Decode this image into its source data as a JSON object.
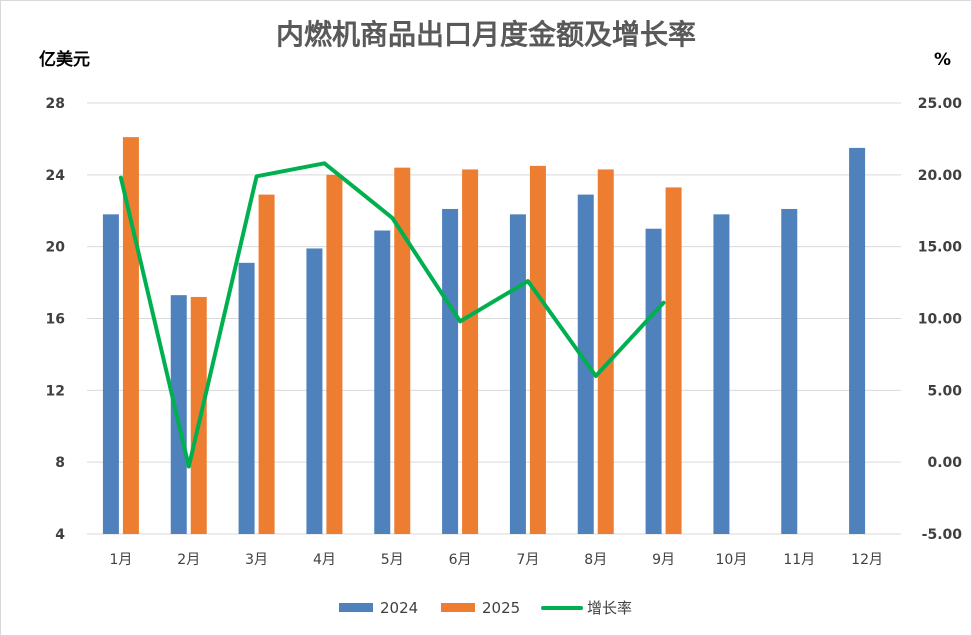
{
  "chart_data": {
    "type": "bar",
    "title": "内燃机商品出口月度金额及增长率",
    "ylabel_left": "亿美元",
    "ylabel_right": "%",
    "categories": [
      "1月",
      "2月",
      "3月",
      "4月",
      "5月",
      "6月",
      "7月",
      "8月",
      "9月",
      "10月",
      "11月",
      "12月"
    ],
    "series": [
      {
        "name": "2024",
        "type": "bar",
        "axis": "left",
        "color": "#4f81bd",
        "values": [
          21.8,
          17.3,
          19.1,
          19.9,
          20.9,
          22.1,
          21.8,
          22.9,
          21.0,
          21.8,
          22.1,
          25.5
        ]
      },
      {
        "name": "2025",
        "type": "bar",
        "axis": "left",
        "color": "#ed7d31",
        "values": [
          26.1,
          17.2,
          22.9,
          24.0,
          24.4,
          24.3,
          24.5,
          24.3,
          23.3,
          null,
          null,
          null
        ]
      },
      {
        "name": "增长率",
        "type": "line",
        "axis": "right",
        "color": "#00b050",
        "values": [
          19.8,
          -0.3,
          19.9,
          20.8,
          17.0,
          9.8,
          12.6,
          6.0,
          11.1,
          null,
          null,
          null
        ]
      }
    ],
    "ylim_left": [
      4,
      28
    ],
    "yticks_left": [
      "4",
      "8",
      "12",
      "16",
      "20",
      "24",
      "28"
    ],
    "ylim_right": [
      -5,
      25
    ],
    "yticks_right": [
      "-5.00",
      "0.00",
      "5.00",
      "10.00",
      "15.00",
      "20.00",
      "25.00"
    ],
    "grid": true,
    "legend_position": "bottom"
  }
}
